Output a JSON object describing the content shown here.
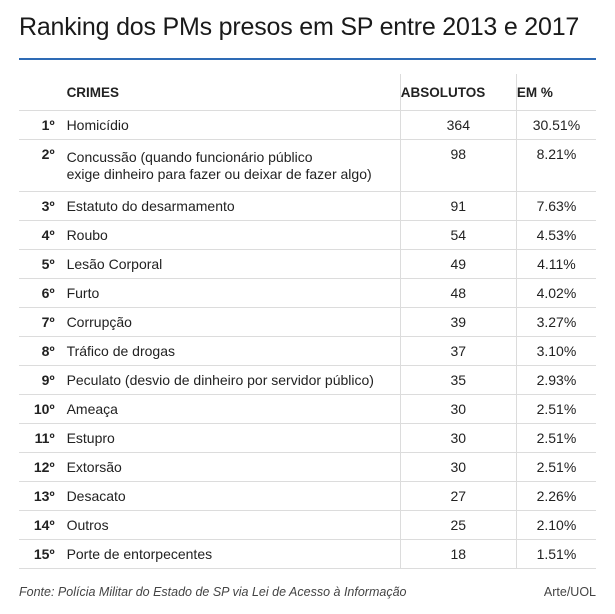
{
  "title": "Ranking dos PMs presos em SP entre 2013 e 2017",
  "colors": {
    "accent_rule": "#2e6bb5",
    "row_divider": "#dcdcdc"
  },
  "chart_data": {
    "type": "table",
    "title": "Ranking dos PMs presos em SP entre 2013 e 2017",
    "columns": [
      "",
      "CRIMES",
      "ABSOLUTOS",
      "EM %"
    ],
    "rows": [
      {
        "rank": "1º",
        "crime": [
          "Homicídio"
        ],
        "absolutos": "364",
        "pct": "30.51%"
      },
      {
        "rank": "2º",
        "crime": [
          "Concussão (quando funcionário público",
          "exige dinheiro para fazer ou deixar de fazer algo)"
        ],
        "absolutos": "98",
        "pct": "8.21%"
      },
      {
        "rank": "3º",
        "crime": [
          "Estatuto do desarmamento"
        ],
        "absolutos": "91",
        "pct": "7.63%"
      },
      {
        "rank": "4º",
        "crime": [
          "Roubo"
        ],
        "absolutos": "54",
        "pct": "4.53%"
      },
      {
        "rank": "5º",
        "crime": [
          "Lesão Corporal"
        ],
        "absolutos": "49",
        "pct": "4.11%"
      },
      {
        "rank": "6º",
        "crime": [
          "Furto"
        ],
        "absolutos": "48",
        "pct": "4.02%"
      },
      {
        "rank": "7º",
        "crime": [
          "Corrupção"
        ],
        "absolutos": "39",
        "pct": "3.27%"
      },
      {
        "rank": "8º",
        "crime": [
          "Tráfico de drogas"
        ],
        "absolutos": "37",
        "pct": "3.10%"
      },
      {
        "rank": "9º",
        "crime": [
          "Peculato (desvio de dinheiro por servidor público)"
        ],
        "absolutos": "35",
        "pct": "2.93%"
      },
      {
        "rank": "10º",
        "crime": [
          "Ameaça"
        ],
        "absolutos": "30",
        "pct": "2.51%"
      },
      {
        "rank": "11º",
        "crime": [
          "Estupro"
        ],
        "absolutos": "30",
        "pct": "2.51%"
      },
      {
        "rank": "12º",
        "crime": [
          "Extorsão"
        ],
        "absolutos": "30",
        "pct": "2.51%"
      },
      {
        "rank": "13º",
        "crime": [
          "Desacato"
        ],
        "absolutos": "27",
        "pct": "2.26%"
      },
      {
        "rank": "14º",
        "crime": [
          "Outros"
        ],
        "absolutos": "25",
        "pct": "2.10%"
      },
      {
        "rank": "15º",
        "crime": [
          "Porte de entorpecentes"
        ],
        "absolutos": "18",
        "pct": "1.51%"
      }
    ]
  },
  "footer": {
    "source": "Fonte: Polícia Militar do Estado de SP via Lei de Acesso à Informação",
    "credit": "Arte/UOL"
  }
}
